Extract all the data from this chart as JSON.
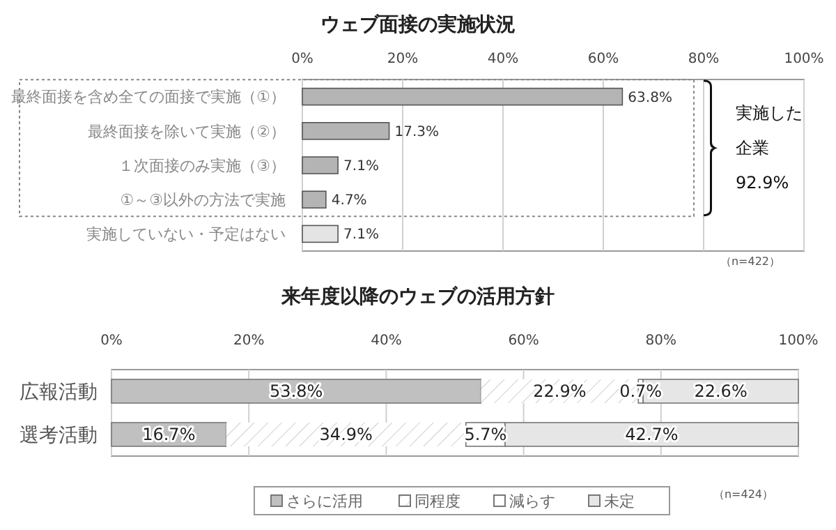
{
  "chart_data": [
    {
      "type": "bar",
      "orientation": "horizontal",
      "title": "ウェブ面接の実施状況",
      "categories": [
        "最終面接を含め全ての面接で実施（①）",
        "最終面接を除いて実施（②）",
        "１次面接のみ実施（③）",
        "①～③以外の方法で実施",
        "実施していない・予定はない"
      ],
      "values": [
        63.8,
        17.3,
        7.1,
        4.7,
        7.1
      ],
      "colors": [
        "#b4b4b4",
        "#b4b4b4",
        "#b4b4b4",
        "#b4b4b4",
        "#e4e4e4"
      ],
      "value_labels": [
        "63.8%",
        "17.3%",
        "7.1%",
        "4.7%",
        "7.1%"
      ],
      "xlim": [
        0,
        100
      ],
      "xticks": [
        {
          "value": 0,
          "label": "0%"
        },
        {
          "value": 20,
          "label": "20%"
        },
        {
          "value": 40,
          "label": "40%"
        },
        {
          "value": 60,
          "label": "60%"
        },
        {
          "value": 80,
          "label": "80%"
        },
        {
          "value": 100,
          "label": "100%"
        }
      ],
      "grid": "x",
      "annotations": [
        "実施した企業",
        "92.9%",
        "（n=422）"
      ]
    },
    {
      "type": "bar",
      "orientation": "horizontal",
      "stacked": true,
      "title": "来年度以降のウェブの活用方針",
      "categories": [
        "広報活動",
        "選考活動"
      ],
      "series": [
        {
          "name": "さらに活用",
          "color": "#c0c0c0",
          "values": [
            53.8,
            16.7
          ],
          "value_labels": [
            "53.8%",
            "16.7%"
          ]
        },
        {
          "name": "同程度",
          "color": "#ffffff",
          "values": [
            22.9,
            34.9
          ],
          "value_labels": [
            "22.9%",
            "34.9%"
          ]
        },
        {
          "name": "減らす",
          "color": "#ffffff",
          "values": [
            0.7,
            5.7
          ],
          "value_labels": [
            "0.7%",
            "5.7%"
          ]
        },
        {
          "name": "未定",
          "color": "#e6e6e6",
          "values": [
            22.6,
            42.7
          ],
          "value_labels": [
            "22.6%",
            "42.7%"
          ]
        }
      ],
      "xlim": [
        0,
        100
      ],
      "xticks": [
        {
          "value": 0,
          "label": "0%"
        },
        {
          "value": 20,
          "label": "20%"
        },
        {
          "value": 40,
          "label": "40%"
        },
        {
          "value": 60,
          "label": "60%"
        },
        {
          "value": 80,
          "label": "80%"
        },
        {
          "value": 100,
          "label": "100%"
        }
      ],
      "grid": "x",
      "legend": "bottom",
      "annotations": [
        "（n=424）"
      ]
    }
  ]
}
